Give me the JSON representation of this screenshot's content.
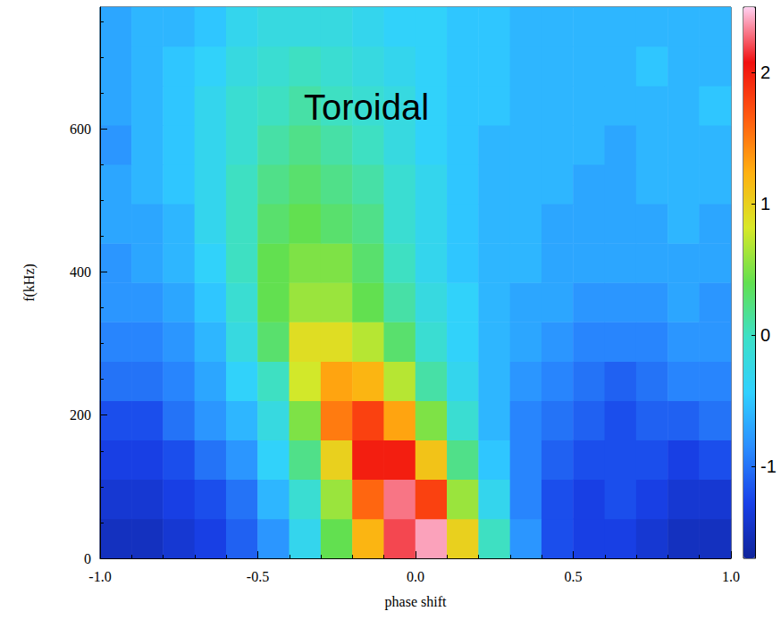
{
  "chart_data": {
    "type": "heatmap",
    "title": "Toroidal",
    "x_label": "phase shift",
    "y_label": "f(kHz)",
    "xlim": [
      -1,
      1
    ],
    "xticks": [
      {
        "value": -1,
        "label": "-1.0"
      },
      {
        "value": -0.5,
        "label": "-0.5"
      },
      {
        "value": 0,
        "label": "0.0"
      },
      {
        "value": 0.5,
        "label": "0.5"
      },
      {
        "value": 1,
        "label": "1.0"
      }
    ],
    "ylim": [
      0,
      770
    ],
    "yticks": [
      0,
      200,
      400,
      600
    ],
    "x": [
      -0.95,
      -0.85,
      -0.75,
      -0.65,
      -0.55,
      -0.45,
      -0.35,
      -0.25,
      -0.15,
      -0.05,
      0.05,
      0.15,
      0.25,
      0.35,
      0.45,
      0.55,
      0.65,
      0.75,
      0.85,
      0.95
    ],
    "y": [
      27.5,
      82.5,
      137.5,
      192.5,
      247.5,
      302.5,
      357.5,
      412.5,
      467.5,
      522.5,
      577.5,
      632.5,
      687.5,
      742.5
    ],
    "z": [
      [
        -1.5,
        -1.5,
        -1.4,
        -1.3,
        -1.1,
        -0.8,
        -0.3,
        0.4,
        1.2,
        2.2,
        2.4,
        1.0,
        0.0,
        -0.8,
        -1.2,
        -1.3,
        -1.3,
        -1.4,
        -1.5,
        -1.5
      ],
      [
        -1.4,
        -1.4,
        -1.3,
        -1.2,
        -1.0,
        -0.6,
        -0.1,
        0.6,
        1.6,
        2.3,
        1.8,
        0.6,
        -0.3,
        -0.9,
        -1.2,
        -1.3,
        -1.2,
        -1.3,
        -1.4,
        -1.4
      ],
      [
        -1.3,
        -1.3,
        -1.2,
        -1.0,
        -0.8,
        -0.4,
        0.2,
        1.0,
        2.0,
        2.0,
        1.1,
        0.2,
        -0.5,
        -0.9,
        -1.1,
        -1.2,
        -1.2,
        -1.2,
        -1.3,
        -1.2
      ],
      [
        -1.2,
        -1.2,
        -1.0,
        -0.8,
        -0.6,
        -0.2,
        0.5,
        1.5,
        1.8,
        1.3,
        0.5,
        -0.1,
        -0.6,
        -0.9,
        -1.0,
        -1.1,
        -1.2,
        -1.1,
        -1.1,
        -1.0
      ],
      [
        -1.0,
        -1.0,
        -0.9,
        -0.7,
        -0.4,
        0.0,
        0.8,
        1.3,
        1.2,
        0.7,
        0.1,
        -0.3,
        -0.6,
        -0.8,
        -0.9,
        -1.0,
        -1.1,
        -1.0,
        -0.9,
        -0.9
      ],
      [
        -0.9,
        -0.9,
        -0.8,
        -0.6,
        -0.2,
        0.3,
        0.9,
        0.9,
        0.7,
        0.3,
        -0.1,
        -0.4,
        -0.6,
        -0.7,
        -0.8,
        -0.9,
        -0.9,
        -0.9,
        -0.8,
        -0.8
      ],
      [
        -0.8,
        -0.8,
        -0.7,
        -0.5,
        -0.1,
        0.4,
        0.6,
        0.6,
        0.4,
        0.1,
        -0.2,
        -0.4,
        -0.6,
        -0.7,
        -0.7,
        -0.8,
        -0.8,
        -0.8,
        -0.7,
        -0.8
      ],
      [
        -0.8,
        -0.7,
        -0.6,
        -0.4,
        0.0,
        0.4,
        0.5,
        0.5,
        0.3,
        0.0,
        -0.3,
        -0.5,
        -0.6,
        -0.6,
        -0.7,
        -0.7,
        -0.7,
        -0.7,
        -0.7,
        -0.7
      ],
      [
        -0.7,
        -0.7,
        -0.6,
        -0.3,
        0.0,
        0.3,
        0.4,
        0.3,
        0.2,
        -0.1,
        -0.3,
        -0.5,
        -0.6,
        -0.6,
        -0.7,
        -0.7,
        -0.7,
        -0.7,
        -0.6,
        -0.7
      ],
      [
        -0.7,
        -0.6,
        -0.5,
        -0.3,
        0.0,
        0.2,
        0.3,
        0.2,
        0.1,
        -0.1,
        -0.3,
        -0.5,
        -0.6,
        -0.6,
        -0.6,
        -0.7,
        -0.7,
        -0.6,
        -0.6,
        -0.6
      ],
      [
        -0.8,
        -0.6,
        -0.5,
        -0.3,
        -0.1,
        0.1,
        0.2,
        0.1,
        0.0,
        -0.2,
        -0.4,
        -0.5,
        -0.6,
        -0.6,
        -0.6,
        -0.6,
        -0.7,
        -0.6,
        -0.6,
        -0.6
      ],
      [
        -0.7,
        -0.6,
        -0.5,
        -0.3,
        -0.1,
        0.0,
        0.1,
        0.0,
        -0.1,
        -0.2,
        -0.4,
        -0.5,
        -0.5,
        -0.6,
        -0.6,
        -0.6,
        -0.6,
        -0.6,
        -0.6,
        -0.5
      ],
      [
        -0.7,
        -0.6,
        -0.5,
        -0.4,
        -0.2,
        -0.1,
        0.0,
        -0.1,
        -0.2,
        -0.3,
        -0.4,
        -0.5,
        -0.5,
        -0.6,
        -0.6,
        -0.6,
        -0.6,
        -0.5,
        -0.6,
        -0.6
      ],
      [
        -0.7,
        -0.6,
        -0.6,
        -0.5,
        -0.3,
        -0.2,
        -0.2,
        -0.2,
        -0.3,
        -0.4,
        -0.4,
        -0.5,
        -0.5,
        -0.6,
        -0.6,
        -0.6,
        -0.6,
        -0.6,
        -0.6,
        -0.6
      ]
    ],
    "colorbar": {
      "range": [
        -1.7,
        2.5
      ],
      "ticks": [
        -1,
        0,
        1,
        2
      ]
    }
  }
}
